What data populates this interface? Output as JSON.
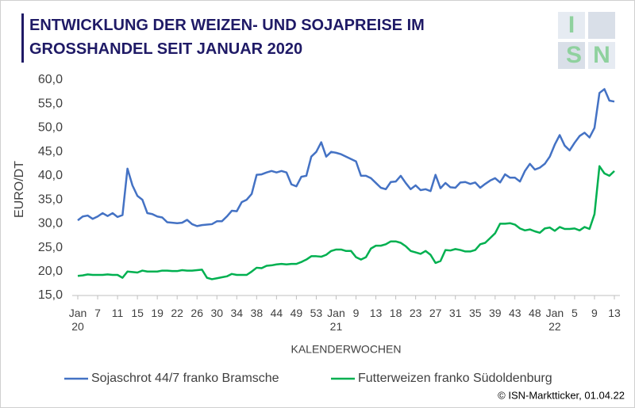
{
  "chart_data": {
    "type": "line",
    "title": "ENTWICKLUNG DER WEIZEN- UND SOJAPREISE IM GROSSHANDEL SEIT JANUAR 2020",
    "logo": [
      "I",
      "S",
      "N"
    ],
    "y_label": "EURO/DT",
    "x_label": "KALENDERWOCHEN",
    "source": "© ISN-Marktticker, 01.04.22",
    "ylim": [
      15,
      60
    ],
    "yticks": [
      {
        "value": 15,
        "label": "15,0"
      },
      {
        "value": 20,
        "label": "20,0"
      },
      {
        "value": 25,
        "label": "25,0"
      },
      {
        "value": 30,
        "label": "30,0"
      },
      {
        "value": 35,
        "label": "35,0"
      },
      {
        "value": 40,
        "label": "40,0"
      },
      {
        "value": 45,
        "label": "45,0"
      },
      {
        "value": 50,
        "label": "50,0"
      },
      {
        "value": 55,
        "label": "55,0"
      },
      {
        "value": 60,
        "label": "60,0"
      }
    ],
    "grid": false,
    "categories": [
      "Jan\n20",
      null,
      null,
      null,
      "7",
      null,
      null,
      null,
      "11",
      null,
      null,
      null,
      "15",
      null,
      null,
      null,
      "19",
      null,
      null,
      null,
      "22",
      null,
      null,
      null,
      "26",
      null,
      null,
      null,
      "30",
      null,
      null,
      null,
      "34",
      null,
      null,
      null,
      "38",
      null,
      null,
      null,
      "44",
      null,
      null,
      null,
      "49",
      null,
      null,
      null,
      "53",
      null,
      null,
      null,
      "Jan\n21",
      null,
      null,
      null,
      "9",
      null,
      null,
      null,
      "13",
      null,
      null,
      null,
      "18",
      null,
      null,
      null,
      "23",
      null,
      null,
      null,
      "27",
      null,
      null,
      null,
      "31",
      null,
      null,
      null,
      "35",
      null,
      null,
      null,
      "39",
      null,
      null,
      null,
      "43",
      null,
      null,
      null,
      "48",
      null,
      null,
      null,
      "Jan\n22",
      null,
      null,
      null,
      "5",
      null,
      null,
      null,
      "9",
      null,
      null,
      null,
      "13"
    ],
    "series": [
      {
        "name": "Sojaschrot 44/7 franko Bramsche",
        "color": "#4472c4",
        "values": [
          30.7,
          31.5,
          31.7,
          31.0,
          31.5,
          32.2,
          31.6,
          32.2,
          31.4,
          31.8,
          41.5,
          38.0,
          35.8,
          35.0,
          32.2,
          32.0,
          31.5,
          31.3,
          30.3,
          30.2,
          30.1,
          30.2,
          30.8,
          29.9,
          29.5,
          29.7,
          29.8,
          29.9,
          30.5,
          30.5,
          31.5,
          32.7,
          32.6,
          34.5,
          35.0,
          36.2,
          40.2,
          40.3,
          40.7,
          41.0,
          40.7,
          41.0,
          40.7,
          38.2,
          37.8,
          39.8,
          40.0,
          44.0,
          45.0,
          47.0,
          44.0,
          45.0,
          44.8,
          44.5,
          44.0,
          43.5,
          43.0,
          40.0,
          40.0,
          39.5,
          38.5,
          37.5,
          37.2,
          38.7,
          38.8,
          40.0,
          38.5,
          37.2,
          38.0,
          37.0,
          37.2,
          36.8,
          40.2,
          37.4,
          38.5,
          37.6,
          37.5,
          38.6,
          38.7,
          38.3,
          38.6,
          37.5,
          38.3,
          39.0,
          39.5,
          38.6,
          40.3,
          39.6,
          39.6,
          38.8,
          41.0,
          42.5,
          41.3,
          41.7,
          42.5,
          44.0,
          46.5,
          48.5,
          46.3,
          45.3,
          46.9,
          48.3,
          49.0,
          48.0,
          50.0,
          57.3,
          58.1,
          55.7,
          55.5
        ]
      },
      {
        "name": "Futterweizen franko Südoldenburg",
        "color": "#00b050",
        "values": [
          19.1,
          19.2,
          19.4,
          19.3,
          19.3,
          19.3,
          19.4,
          19.3,
          19.3,
          18.7,
          20.0,
          19.9,
          19.8,
          20.2,
          20.0,
          20.0,
          20.0,
          20.2,
          20.2,
          20.1,
          20.1,
          20.3,
          20.2,
          20.2,
          20.3,
          20.4,
          18.7,
          18.4,
          18.6,
          18.8,
          19.0,
          19.5,
          19.3,
          19.3,
          19.3,
          20.0,
          20.8,
          20.7,
          21.2,
          21.3,
          21.5,
          21.6,
          21.5,
          21.6,
          21.6,
          22.0,
          22.5,
          23.2,
          23.2,
          23.1,
          23.5,
          24.3,
          24.6,
          24.6,
          24.3,
          24.3,
          23.0,
          22.5,
          23.0,
          24.8,
          25.4,
          25.4,
          25.7,
          26.3,
          26.3,
          26.0,
          25.3,
          24.3,
          24.0,
          23.7,
          24.3,
          23.5,
          21.8,
          22.2,
          24.5,
          24.4,
          24.7,
          24.5,
          24.2,
          24.2,
          24.5,
          25.7,
          26.0,
          27.0,
          28.0,
          30.0,
          30.0,
          30.1,
          29.8,
          29.0,
          28.6,
          28.8,
          28.4,
          28.1,
          29.0,
          29.2,
          28.5,
          29.3,
          28.9,
          28.9,
          29.0,
          28.6,
          29.3,
          28.9,
          32.0,
          42.0,
          40.5,
          40.0,
          41.0
        ]
      }
    ]
  }
}
